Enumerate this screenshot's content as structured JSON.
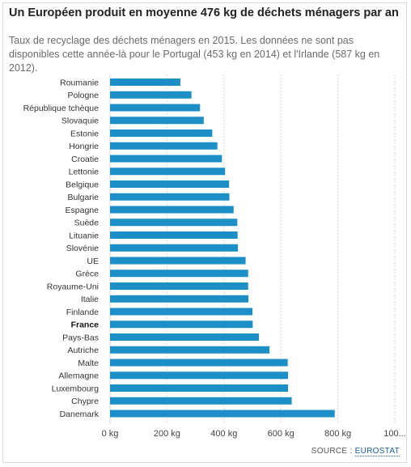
{
  "header": {
    "title": "Un Européen produit en moyenne 476 kg de déchets ménagers par an",
    "subtitle": "Taux de recyclage des déchets ménagers en 2015. Les données ne sont pas disponibles cette année-là pour le Portugal (453 kg en 2014) et l'Irlande (587 kg en 2012)."
  },
  "footer": {
    "source_prefix": "SOURCE : ",
    "source_link": "EUROSTAT"
  },
  "colors": {
    "bar": "#1c8fc7",
    "grid": "#d6d6d6",
    "text": "#333333"
  },
  "chart_data": {
    "type": "bar",
    "orientation": "horizontal",
    "title": "Un Européen produit en moyenne 476 kg de déchets ménagers par an",
    "subtitle": "Taux de recyclage des déchets ménagers en 2015. Les données ne sont pas disponibles cette année-là pour le Portugal (453 kg en 2014) et l'Irlande (587 kg en 2012).",
    "xlabel": "",
    "ylabel": "",
    "xlim": [
      0,
      1000
    ],
    "x_ticks": [
      "0 kg",
      "200 kg",
      "400 kg",
      "600 kg",
      "800 kg",
      "100..."
    ],
    "grid": true,
    "highlight": "France",
    "categories": [
      "Roumanie",
      "Pologne",
      "République tchèque",
      "Slovaquie",
      "Estonie",
      "Hongrie",
      "Croatie",
      "Lettonie",
      "Belgique",
      "Bulgarie",
      "Espagne",
      "Suède",
      "Lituanie",
      "Slovénie",
      "UE",
      "Grèce",
      "Royaume-Uni",
      "Italie",
      "Finlande",
      "France",
      "Pays-Bas",
      "Autriche",
      "Malte",
      "Allemagne",
      "Luxembourg",
      "Chypre",
      "Danemark"
    ],
    "values": [
      247,
      286,
      316,
      329,
      359,
      377,
      393,
      404,
      418,
      419,
      434,
      447,
      448,
      449,
      476,
      485,
      485,
      486,
      500,
      501,
      523,
      560,
      624,
      625,
      625,
      638,
      789
    ]
  }
}
